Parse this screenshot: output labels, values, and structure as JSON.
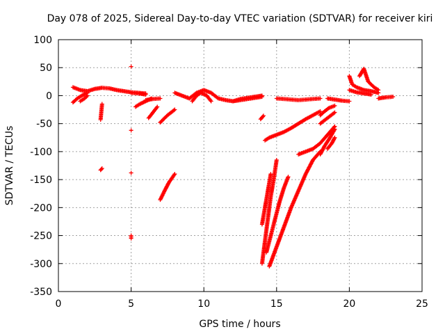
{
  "chart_data": {
    "type": "scatter",
    "title": "Day 078 of 2025, Sidereal Day-to-day VTEC variation (SDTVAR) for receiver kiri",
    "xlabel": "GPS time / hours",
    "ylabel": "SDTVAR / TECUs",
    "xlim": [
      0,
      25
    ],
    "ylim": [
      -350,
      100
    ],
    "xticks": [
      0,
      5,
      10,
      15,
      20,
      25
    ],
    "yticks": [
      -350,
      -300,
      -250,
      -200,
      -150,
      -100,
      -50,
      0,
      50,
      100
    ],
    "grid": true,
    "marker": "+",
    "color": "#ff0000",
    "segments": [
      {
        "x": [
          1.0,
          1.5,
          2.0,
          2.5,
          3.0,
          3.5,
          4.0,
          4.5,
          5.0,
          5.5,
          6.0
        ],
        "y": [
          15,
          10,
          8,
          12,
          14,
          13,
          10,
          8,
          6,
          5,
          4
        ]
      },
      {
        "x": [
          1.0,
          1.3,
          1.6,
          2.0
        ],
        "y": [
          -12,
          -5,
          0,
          5
        ]
      },
      {
        "x": [
          1.5,
          1.8,
          2.0
        ],
        "y": [
          -10,
          -5,
          0
        ]
      },
      {
        "x": [
          2.9,
          3.0
        ],
        "y": [
          -43,
          -15
        ]
      },
      {
        "x": [
          2.9,
          3.0
        ],
        "y": [
          -133,
          -130
        ]
      },
      {
        "x": [
          5.0,
          5.0,
          5.0,
          5.0,
          5.0
        ],
        "y": [
          52,
          -62,
          -138,
          -250,
          -255
        ]
      },
      {
        "x": [
          5.0,
          5.5,
          6.0
        ],
        "y": [
          5,
          4,
          2
        ]
      },
      {
        "x": [
          5.3,
          5.6,
          6.0,
          6.4
        ],
        "y": [
          -20,
          -15,
          -10,
          -5
        ]
      },
      {
        "x": [
          6.2,
          6.5,
          6.8
        ],
        "y": [
          -40,
          -30,
          -20
        ]
      },
      {
        "x": [
          6.0,
          6.5,
          7.0
        ],
        "y": [
          -8,
          -6,
          -5
        ]
      },
      {
        "x": [
          7.0,
          7.5,
          8.0
        ],
        "y": [
          -48,
          -35,
          -25
        ]
      },
      {
        "x": [
          7.0,
          7.3,
          7.6,
          8.0
        ],
        "y": [
          -186,
          -170,
          -155,
          -140
        ]
      },
      {
        "x": [
          8.0,
          8.5,
          9.0,
          9.5,
          10.0,
          10.5,
          11.0,
          11.5,
          12.0,
          12.5,
          13.0,
          13.5,
          14.0
        ],
        "y": [
          5,
          0,
          -5,
          5,
          10,
          5,
          -5,
          -8,
          -10,
          -6,
          -4,
          -2,
          0
        ]
      },
      {
        "x": [
          9.2,
          9.5,
          9.8,
          10.2,
          10.5
        ],
        "y": [
          -10,
          0,
          5,
          0,
          -10
        ]
      },
      {
        "x": [
          12.0,
          12.5,
          13.0,
          13.5,
          14.0
        ],
        "y": [
          -10,
          -8,
          -6,
          -4,
          -2
        ]
      },
      {
        "x": [
          13.9,
          14.1
        ],
        "y": [
          -42,
          -36
        ]
      },
      {
        "x": [
          14.0,
          14.2,
          14.4,
          14.6,
          14.8,
          15.0
        ],
        "y": [
          -300,
          -260,
          -220,
          -180,
          -150,
          -115
        ]
      },
      {
        "x": [
          14.0,
          14.2,
          14.4,
          14.6
        ],
        "y": [
          -230,
          -200,
          -170,
          -140
        ]
      },
      {
        "x": [
          14.3,
          14.6,
          14.9,
          15.2,
          15.5,
          15.8
        ],
        "y": [
          -280,
          -250,
          -220,
          -190,
          -165,
          -145
        ]
      },
      {
        "x": [
          14.5,
          15.0,
          15.5,
          16.0,
          16.5,
          17.0,
          17.5,
          18.0
        ],
        "y": [
          -305,
          -270,
          -235,
          -200,
          -170,
          -140,
          -115,
          -100
        ]
      },
      {
        "x": [
          14.2,
          14.5,
          15.0,
          15.5,
          16.0,
          16.5,
          17.0,
          17.5,
          18.0
        ],
        "y": [
          -80,
          -75,
          -70,
          -65,
          -58,
          -50,
          -42,
          -35,
          -28
        ]
      },
      {
        "x": [
          15.0,
          15.5,
          16.0,
          16.5,
          17.0,
          17.5,
          18.0
        ],
        "y": [
          -5,
          -6,
          -7,
          -8,
          -7,
          -6,
          -5
        ]
      },
      {
        "x": [
          16.5,
          17.0,
          17.5,
          18.0,
          18.5,
          19.0
        ],
        "y": [
          -105,
          -100,
          -95,
          -85,
          -70,
          -55
        ]
      },
      {
        "x": [
          18.0,
          18.3,
          18.6,
          19.0
        ],
        "y": [
          -105,
          -90,
          -78,
          -60
        ]
      },
      {
        "x": [
          18.0,
          18.5,
          19.0
        ],
        "y": [
          -50,
          -40,
          -30
        ]
      },
      {
        "x": [
          18.0,
          18.3,
          18.6,
          19.0
        ],
        "y": [
          -35,
          -28,
          -22,
          -18
        ]
      },
      {
        "x": [
          18.5,
          18.8,
          19.0
        ],
        "y": [
          -95,
          -85,
          -75
        ]
      },
      {
        "x": [
          18.5,
          19.0,
          19.5,
          20.0
        ],
        "y": [
          -5,
          -7,
          -9,
          -10
        ]
      },
      {
        "x": [
          20.0,
          20.2,
          20.5,
          21.0,
          21.5,
          22.0
        ],
        "y": [
          35,
          20,
          15,
          10,
          8,
          5
        ]
      },
      {
        "x": [
          20.0,
          20.5,
          21.0,
          21.5
        ],
        "y": [
          10,
          6,
          4,
          2
        ]
      },
      {
        "x": [
          20.7,
          21.0,
          21.3,
          21.7,
          22.0
        ],
        "y": [
          35,
          48,
          25,
          15,
          10
        ]
      },
      {
        "x": [
          22.0,
          22.5,
          23.0
        ],
        "y": [
          -5,
          -3,
          -2
        ]
      }
    ]
  }
}
